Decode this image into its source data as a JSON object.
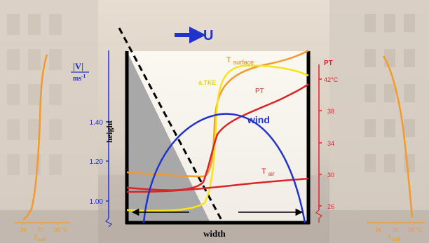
{
  "flow": {
    "label": "U"
  },
  "left_axis": {
    "unit_top": "|V|",
    "unit_bottom": "ms",
    "unit_sup": "-1",
    "title": "height",
    "ticks": [
      "1.40",
      "1.20",
      "1.00"
    ]
  },
  "right_axis": {
    "title": "PT",
    "ticks": [
      "42°C",
      "38",
      "34",
      "30",
      "26"
    ]
  },
  "curve_labels": {
    "t_surface_main": "T",
    "t_surface_sub": "surface",
    "tke": "a.TKE",
    "pt": "PT",
    "wind": "wind",
    "t_air_main": "T",
    "t_air_sub": "air"
  },
  "bottom": {
    "width_label": "width"
  },
  "left_wall_profile": {
    "ticks": [
      "34",
      "37",
      "38 °C"
    ],
    "label_main": "T",
    "label_sub": "wall"
  },
  "right_wall_profile": {
    "ticks": [
      "34",
      "36",
      "38 °C"
    ],
    "label_main": "T",
    "label_sub": "wall"
  },
  "colors": {
    "orange": "#f39a2c",
    "yellow": "#f7e41a",
    "red": "#d8262a",
    "blue": "#2233cc",
    "black": "#000000",
    "shadow": "#a8a8a8"
  }
}
